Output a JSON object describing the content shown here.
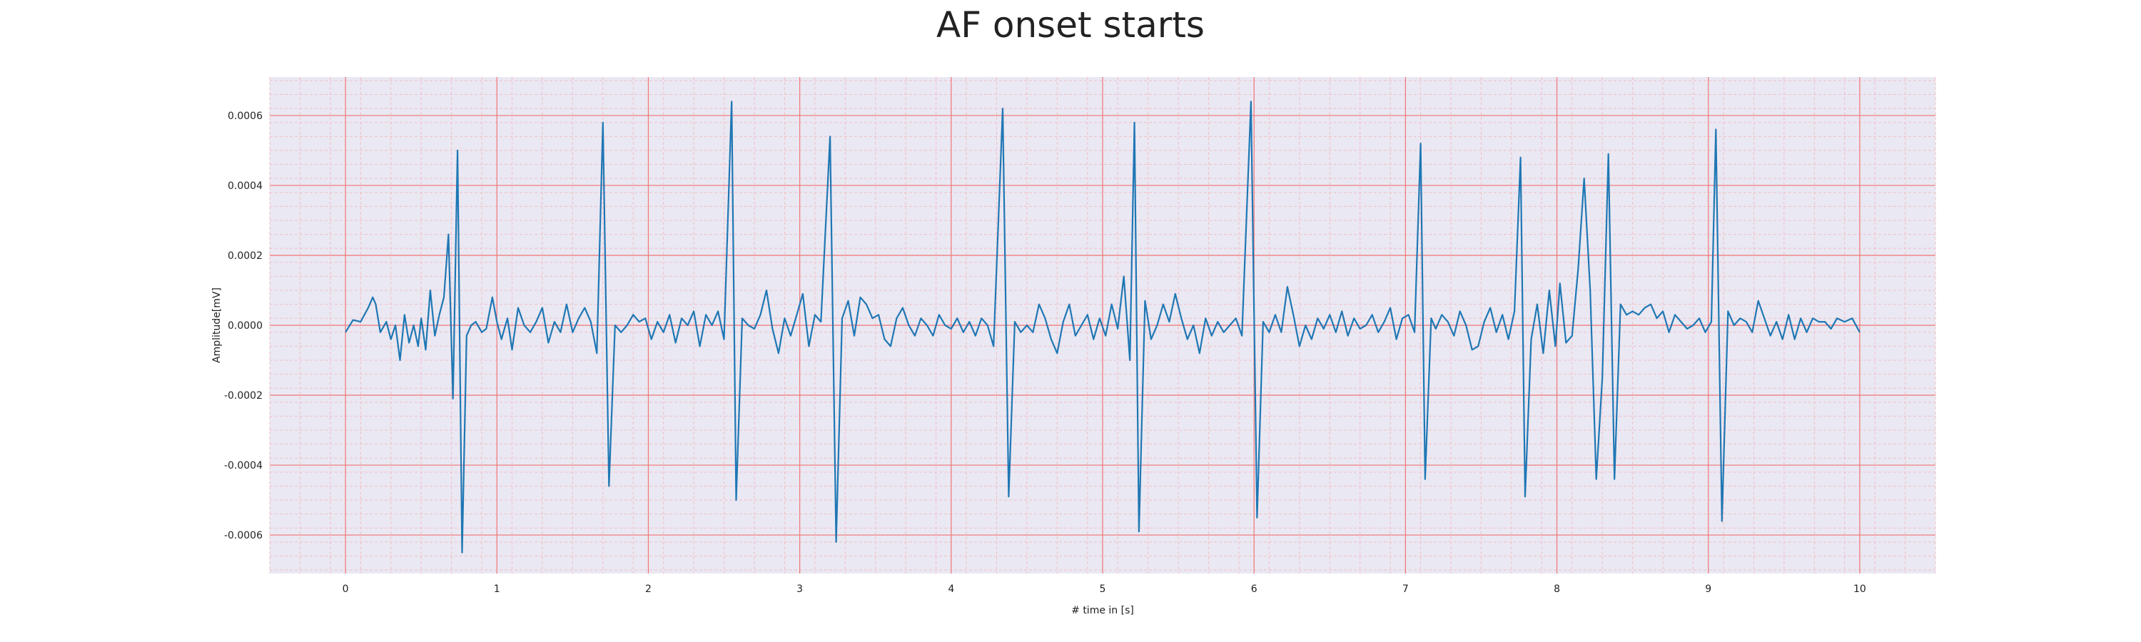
{
  "chart_data": {
    "type": "line",
    "title": "AF onset starts",
    "xlabel": "# time in [s]",
    "ylabel": "Amplitude[mV]",
    "xlim": [
      -0.5,
      10.5
    ],
    "ylim": [
      -0.00071,
      0.00071
    ],
    "x_ticks": [
      0,
      1,
      2,
      3,
      4,
      5,
      6,
      7,
      8,
      9,
      10
    ],
    "x_tick_labels": [
      "0",
      "1",
      "2",
      "3",
      "4",
      "5",
      "6",
      "7",
      "8",
      "9",
      "10"
    ],
    "y_ticks": [
      0.0006,
      0.0004,
      0.0002,
      0.0,
      -0.0002,
      -0.0004,
      -0.0006
    ],
    "y_tick_labels": [
      "0.0006",
      "0.0004",
      "0.0002",
      "0.0000",
      "-0.0002",
      "-0.0004",
      "-0.0006"
    ],
    "grid": true,
    "minor_grid": true,
    "colors": {
      "line": "#1f77b4",
      "plot_background": "#eae8f2",
      "major_grid": "#f07575",
      "minor_grid": "#f2bfc8"
    },
    "series": [
      {
        "values": [
          [
            0.0,
            -2e-05
          ],
          [
            0.05,
            1.5e-05
          ],
          [
            0.1,
            1e-05
          ],
          [
            0.15,
            5e-05
          ],
          [
            0.18,
            8e-05
          ],
          [
            0.2,
            6e-05
          ],
          [
            0.23,
            -2e-05
          ],
          [
            0.27,
            1e-05
          ],
          [
            0.3,
            -4e-05
          ],
          [
            0.33,
            0.0
          ],
          [
            0.36,
            -0.0001
          ],
          [
            0.39,
            3e-05
          ],
          [
            0.42,
            -5e-05
          ],
          [
            0.45,
            0.0
          ],
          [
            0.48,
            -6e-05
          ],
          [
            0.5,
            2e-05
          ],
          [
            0.53,
            -7e-05
          ],
          [
            0.56,
            0.0001
          ],
          [
            0.59,
            -3e-05
          ],
          [
            0.62,
            3e-05
          ],
          [
            0.65,
            8e-05
          ],
          [
            0.68,
            0.00026
          ],
          [
            0.71,
            -0.00021
          ],
          [
            0.74,
            0.0005
          ],
          [
            0.77,
            -0.00065
          ],
          [
            0.8,
            -3e-05
          ],
          [
            0.83,
            0.0
          ],
          [
            0.86,
            1e-05
          ],
          [
            0.9,
            -2e-05
          ],
          [
            0.93,
            -1e-05
          ],
          [
            0.97,
            8e-05
          ],
          [
            1.0,
            1e-05
          ],
          [
            1.03,
            -4e-05
          ],
          [
            1.07,
            2e-05
          ],
          [
            1.1,
            -7e-05
          ],
          [
            1.14,
            5e-05
          ],
          [
            1.18,
            0.0
          ],
          [
            1.22,
            -2e-05
          ],
          [
            1.26,
            1e-05
          ],
          [
            1.3,
            5e-05
          ],
          [
            1.34,
            -5e-05
          ],
          [
            1.38,
            1e-05
          ],
          [
            1.42,
            -2e-05
          ],
          [
            1.46,
            6e-05
          ],
          [
            1.5,
            -2e-05
          ],
          [
            1.54,
            2e-05
          ],
          [
            1.58,
            5e-05
          ],
          [
            1.62,
            1e-05
          ],
          [
            1.66,
            -8e-05
          ],
          [
            1.7,
            0.00058
          ],
          [
            1.74,
            -0.00046
          ],
          [
            1.78,
            0.0
          ],
          [
            1.82,
            -2e-05
          ],
          [
            1.86,
            0.0
          ],
          [
            1.9,
            3e-05
          ],
          [
            1.94,
            1e-05
          ],
          [
            1.98,
            2e-05
          ],
          [
            2.02,
            -4e-05
          ],
          [
            2.06,
            1e-05
          ],
          [
            2.1,
            -2e-05
          ],
          [
            2.14,
            3e-05
          ],
          [
            2.18,
            -5e-05
          ],
          [
            2.22,
            2e-05
          ],
          [
            2.26,
            0.0
          ],
          [
            2.3,
            4e-05
          ],
          [
            2.34,
            -6e-05
          ],
          [
            2.38,
            3e-05
          ],
          [
            2.42,
            0.0
          ],
          [
            2.46,
            4e-05
          ],
          [
            2.5,
            -4e-05
          ],
          [
            2.55,
            0.00064
          ],
          [
            2.58,
            -0.0005
          ],
          [
            2.62,
            2e-05
          ],
          [
            2.66,
            0.0
          ],
          [
            2.7,
            -1e-05
          ],
          [
            2.74,
            3e-05
          ],
          [
            2.78,
            0.0001
          ],
          [
            2.82,
            -1e-05
          ],
          [
            2.86,
            -8e-05
          ],
          [
            2.9,
            2e-05
          ],
          [
            2.94,
            -3e-05
          ],
          [
            2.98,
            3e-05
          ],
          [
            3.02,
            9e-05
          ],
          [
            3.06,
            -6e-05
          ],
          [
            3.1,
            3e-05
          ],
          [
            3.14,
            1e-05
          ],
          [
            3.2,
            0.00054
          ],
          [
            3.24,
            -0.00062
          ],
          [
            3.28,
            2e-05
          ],
          [
            3.32,
            7e-05
          ],
          [
            3.36,
            -3e-05
          ],
          [
            3.4,
            8e-05
          ],
          [
            3.44,
            6e-05
          ],
          [
            3.48,
            2e-05
          ],
          [
            3.52,
            3e-05
          ],
          [
            3.56,
            -4e-05
          ],
          [
            3.6,
            -6e-05
          ],
          [
            3.64,
            2e-05
          ],
          [
            3.68,
            5e-05
          ],
          [
            3.72,
            0.0
          ],
          [
            3.76,
            -3e-05
          ],
          [
            3.8,
            2e-05
          ],
          [
            3.84,
            0.0
          ],
          [
            3.88,
            -3e-05
          ],
          [
            3.92,
            3e-05
          ],
          [
            3.96,
            0.0
          ],
          [
            4.0,
            -1e-05
          ],
          [
            4.04,
            2e-05
          ],
          [
            4.08,
            -2e-05
          ],
          [
            4.12,
            1e-05
          ],
          [
            4.16,
            -3e-05
          ],
          [
            4.2,
            2e-05
          ],
          [
            4.24,
            0.0
          ],
          [
            4.28,
            -6e-05
          ],
          [
            4.34,
            0.00062
          ],
          [
            4.38,
            -0.00049
          ],
          [
            4.42,
            1e-05
          ],
          [
            4.46,
            -2e-05
          ],
          [
            4.5,
            0.0
          ],
          [
            4.54,
            -2e-05
          ],
          [
            4.58,
            6e-05
          ],
          [
            4.62,
            2e-05
          ],
          [
            4.66,
            -4e-05
          ],
          [
            4.7,
            -8e-05
          ],
          [
            4.74,
            1e-05
          ],
          [
            4.78,
            6e-05
          ],
          [
            4.82,
            -3e-05
          ],
          [
            4.86,
            0.0
          ],
          [
            4.9,
            3e-05
          ],
          [
            4.94,
            -4e-05
          ],
          [
            4.98,
            2e-05
          ],
          [
            5.02,
            -3e-05
          ],
          [
            5.06,
            6e-05
          ],
          [
            5.1,
            -1e-05
          ],
          [
            5.14,
            0.00014
          ],
          [
            5.18,
            -0.0001
          ],
          [
            5.21,
            0.00058
          ],
          [
            5.24,
            -0.00059
          ],
          [
            5.28,
            7e-05
          ],
          [
            5.32,
            -4e-05
          ],
          [
            5.36,
            0.0
          ],
          [
            5.4,
            6e-05
          ],
          [
            5.44,
            1e-05
          ],
          [
            5.48,
            9e-05
          ],
          [
            5.52,
            2e-05
          ],
          [
            5.56,
            -4e-05
          ],
          [
            5.6,
            0.0
          ],
          [
            5.64,
            -8e-05
          ],
          [
            5.68,
            2e-05
          ],
          [
            5.72,
            -3e-05
          ],
          [
            5.76,
            1e-05
          ],
          [
            5.8,
            -2e-05
          ],
          [
            5.84,
            0.0
          ],
          [
            5.88,
            2e-05
          ],
          [
            5.92,
            -3e-05
          ],
          [
            5.98,
            0.00064
          ],
          [
            6.02,
            -0.00055
          ],
          [
            6.06,
            1e-05
          ],
          [
            6.1,
            -2e-05
          ],
          [
            6.14,
            3e-05
          ],
          [
            6.18,
            -2e-05
          ],
          [
            6.22,
            0.00011
          ],
          [
            6.26,
            3e-05
          ],
          [
            6.3,
            -6e-05
          ],
          [
            6.34,
            0.0
          ],
          [
            6.38,
            -4e-05
          ],
          [
            6.42,
            2e-05
          ],
          [
            6.46,
            -1e-05
          ],
          [
            6.5,
            3e-05
          ],
          [
            6.54,
            -2e-05
          ],
          [
            6.58,
            4e-05
          ],
          [
            6.62,
            -3e-05
          ],
          [
            6.66,
            2e-05
          ],
          [
            6.7,
            -1e-05
          ],
          [
            6.74,
            0.0
          ],
          [
            6.78,
            3e-05
          ],
          [
            6.82,
            -2e-05
          ],
          [
            6.86,
            1e-05
          ],
          [
            6.9,
            5e-05
          ],
          [
            6.94,
            -4e-05
          ],
          [
            6.98,
            2e-05
          ],
          [
            7.02,
            3e-05
          ],
          [
            7.06,
            -2e-05
          ],
          [
            7.1,
            0.00052
          ],
          [
            7.13,
            -0.00044
          ],
          [
            7.17,
            2e-05
          ],
          [
            7.2,
            -1e-05
          ],
          [
            7.24,
            3e-05
          ],
          [
            7.28,
            1e-05
          ],
          [
            7.32,
            -3e-05
          ],
          [
            7.36,
            4e-05
          ],
          [
            7.4,
            0.0
          ],
          [
            7.44,
            -7e-05
          ],
          [
            7.48,
            -6e-05
          ],
          [
            7.52,
            1e-05
          ],
          [
            7.56,
            5e-05
          ],
          [
            7.6,
            -2e-05
          ],
          [
            7.64,
            3e-05
          ],
          [
            7.68,
            -4e-05
          ],
          [
            7.72,
            4e-05
          ],
          [
            7.76,
            0.00048
          ],
          [
            7.79,
            -0.00049
          ],
          [
            7.83,
            -4e-05
          ],
          [
            7.87,
            6e-05
          ],
          [
            7.91,
            -8e-05
          ],
          [
            7.95,
            0.0001
          ],
          [
            7.99,
            -6e-05
          ],
          [
            8.02,
            0.00012
          ],
          [
            8.06,
            -5e-05
          ],
          [
            8.1,
            -3e-05
          ],
          [
            8.14,
            0.00016
          ],
          [
            8.18,
            0.00042
          ],
          [
            8.22,
            0.0001
          ],
          [
            8.26,
            -0.00044
          ],
          [
            8.3,
            -0.00015
          ],
          [
            8.34,
            0.00049
          ],
          [
            8.38,
            -0.00044
          ],
          [
            8.42,
            6e-05
          ],
          [
            8.46,
            3e-05
          ],
          [
            8.5,
            4e-05
          ],
          [
            8.54,
            3e-05
          ],
          [
            8.58,
            5e-05
          ],
          [
            8.62,
            6e-05
          ],
          [
            8.66,
            2e-05
          ],
          [
            8.7,
            4e-05
          ],
          [
            8.74,
            -2e-05
          ],
          [
            8.78,
            3e-05
          ],
          [
            8.82,
            1e-05
          ],
          [
            8.86,
            -1e-05
          ],
          [
            8.9,
            0.0
          ],
          [
            8.94,
            2e-05
          ],
          [
            8.98,
            -2e-05
          ],
          [
            9.02,
            1e-05
          ],
          [
            9.05,
            0.00056
          ],
          [
            9.09,
            -0.00056
          ],
          [
            9.13,
            4e-05
          ],
          [
            9.17,
            0.0
          ],
          [
            9.21,
            2e-05
          ],
          [
            9.25,
            1e-05
          ],
          [
            9.29,
            -2e-05
          ],
          [
            9.33,
            7e-05
          ],
          [
            9.37,
            2e-05
          ],
          [
            9.41,
            -3e-05
          ],
          [
            9.45,
            1e-05
          ],
          [
            9.49,
            -4e-05
          ],
          [
            9.53,
            3e-05
          ],
          [
            9.57,
            -4e-05
          ],
          [
            9.61,
            2e-05
          ],
          [
            9.65,
            -2e-05
          ],
          [
            9.69,
            2e-05
          ],
          [
            9.73,
            1e-05
          ],
          [
            9.77,
            1e-05
          ],
          [
            9.81,
            -1e-05
          ],
          [
            9.85,
            2e-05
          ],
          [
            9.9,
            1e-05
          ],
          [
            9.95,
            2e-05
          ],
          [
            10.0,
            -2e-05
          ]
        ]
      }
    ]
  }
}
